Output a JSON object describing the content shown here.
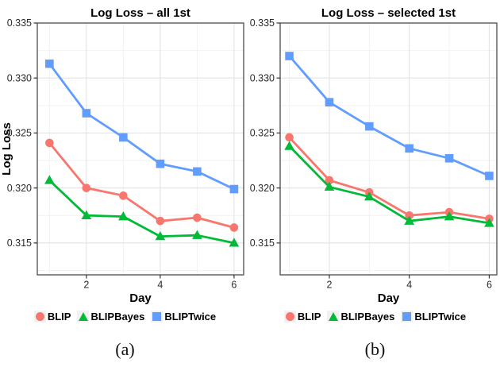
{
  "colors": {
    "blip_red": "#F8766D",
    "blipbayes_green": "#00BA38",
    "bliptwice_blue": "#619CFF",
    "grid_major": "#E3E3E3",
    "grid_minor": "#F2F2F2",
    "panel_border": "#595959",
    "tick_mark": "#333333"
  },
  "chart_data": [
    {
      "type": "line",
      "title": "Log Loss – all 1st",
      "xlabel": "Day",
      "ylabel": "Log Loss",
      "caption": "(a)",
      "x": [
        1,
        2,
        3,
        4,
        5,
        6
      ],
      "xlim": [
        0.67,
        6.26
      ],
      "ylim": [
        0.3121,
        0.335
      ],
      "xticks": [
        2,
        4,
        6
      ],
      "yticks": [
        0.315,
        0.32,
        0.325,
        0.33,
        0.335
      ],
      "xtick_labels": [
        "2",
        "4",
        "6"
      ],
      "ytick_labels": [
        "0.315",
        "0.320",
        "0.325",
        "0.330",
        "0.335"
      ],
      "grid": true,
      "legend_position": "bottom",
      "series": [
        {
          "name": "BLIP",
          "marker": "circle",
          "color": "#F8766D",
          "values": [
            0.3241,
            0.32,
            0.3193,
            0.317,
            0.3173,
            0.3164
          ]
        },
        {
          "name": "BLIPBayes",
          "marker": "triangle",
          "color": "#00BA38",
          "values": [
            0.3207,
            0.3175,
            0.3174,
            0.3156,
            0.3157,
            0.315
          ]
        },
        {
          "name": "BLIPTwice",
          "marker": "square",
          "color": "#619CFF",
          "values": [
            0.3313,
            0.3268,
            0.3246,
            0.3222,
            0.3215,
            0.3199
          ]
        }
      ]
    },
    {
      "type": "line",
      "title": "Log Loss – selected 1st",
      "xlabel": "Day",
      "ylabel": "",
      "caption": "(b)",
      "x": [
        1,
        2,
        3,
        4,
        5,
        6
      ],
      "xlim": [
        0.77,
        6.19
      ],
      "ylim": [
        0.3121,
        0.335
      ],
      "xticks": [
        2,
        4,
        6
      ],
      "yticks": [
        0.315,
        0.32,
        0.325,
        0.33,
        0.335
      ],
      "xtick_labels": [
        "2",
        "4",
        "6"
      ],
      "ytick_labels": [
        "0.315",
        "0.320",
        "0.325",
        "0.330",
        "0.335"
      ],
      "grid": true,
      "legend_position": "bottom",
      "series": [
        {
          "name": "BLIP",
          "marker": "circle",
          "color": "#F8766D",
          "values": [
            0.3246,
            0.3207,
            0.3196,
            0.3175,
            0.3178,
            0.3172
          ]
        },
        {
          "name": "BLIPBayes",
          "marker": "triangle",
          "color": "#00BA38",
          "values": [
            0.3238,
            0.3201,
            0.3192,
            0.317,
            0.3174,
            0.3168
          ]
        },
        {
          "name": "BLIPTwice",
          "marker": "square",
          "color": "#619CFF",
          "values": [
            0.332,
            0.3278,
            0.3256,
            0.3236,
            0.3227,
            0.3211
          ]
        }
      ]
    }
  ]
}
